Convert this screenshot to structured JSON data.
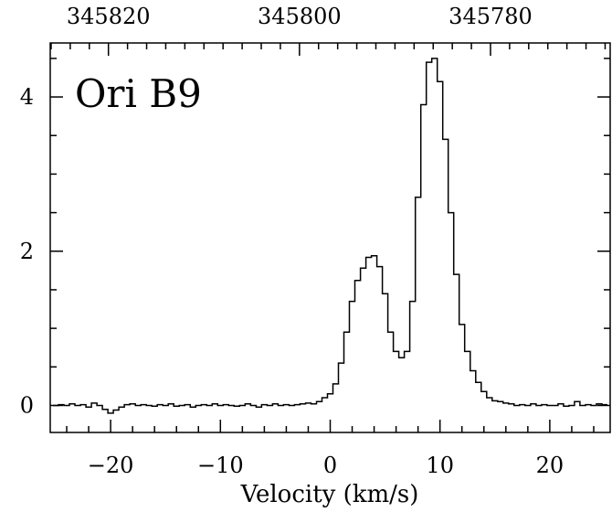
{
  "chart_data": {
    "type": "line",
    "step": true,
    "title": "",
    "annotation": "Ori B9",
    "xlabel": "Velocity (km/s)",
    "ylabel": "",
    "xlim": [
      -25.5,
      25.5
    ],
    "ylim": [
      -0.35,
      4.7
    ],
    "x_ticks": [
      -20,
      -10,
      0,
      10,
      20
    ],
    "x_tick_labels": [
      "−20",
      "−10",
      "0",
      "10",
      "20"
    ],
    "y_ticks": [
      0,
      2,
      4
    ],
    "y_tick_labels": [
      "0",
      "2",
      "4"
    ],
    "top_axis": {
      "ticks_at_velocity": [
        -20.2,
        -2.8,
        14.6
      ],
      "tick_labels": [
        "345820",
        "345800",
        "345780"
      ]
    },
    "grid": false,
    "legend": "none",
    "line_color": "#000000",
    "series": [
      {
        "x": [
          -25.0,
          -24.5,
          -24.0,
          -23.5,
          -23.0,
          -22.5,
          -22.0,
          -21.5,
          -21.0,
          -20.5,
          -20.0,
          -19.5,
          -19.0,
          -18.5,
          -18.0,
          -17.5,
          -17.0,
          -16.5,
          -16.0,
          -15.5,
          -15.0,
          -14.5,
          -14.0,
          -13.5,
          -13.0,
          -12.5,
          -12.0,
          -11.5,
          -11.0,
          -10.5,
          -10.0,
          -9.5,
          -9.0,
          -8.5,
          -8.0,
          -7.5,
          -7.0,
          -6.5,
          -6.0,
          -5.5,
          -5.0,
          -4.5,
          -4.0,
          -3.5,
          -3.0,
          -2.5,
          -2.0,
          -1.5,
          -1.0,
          -0.5,
          0.0,
          0.5,
          1.0,
          1.5,
          2.0,
          2.5,
          3.0,
          3.5,
          4.0,
          4.5,
          5.0,
          5.5,
          6.0,
          6.5,
          7.0,
          7.5,
          8.0,
          8.5,
          9.0,
          9.5,
          10.0,
          10.5,
          11.0,
          11.5,
          12.0,
          12.5,
          13.0,
          13.5,
          14.0,
          14.5,
          15.0,
          15.5,
          16.0,
          16.5,
          17.0,
          17.5,
          18.0,
          18.5,
          19.0,
          19.5,
          20.0,
          20.5,
          21.0,
          21.5,
          22.0,
          22.5,
          23.0,
          23.5,
          24.0,
          24.5,
          25.0
        ],
        "y": [
          0.0,
          0.01,
          0.0,
          0.02,
          0.0,
          0.01,
          -0.02,
          0.03,
          0.0,
          -0.05,
          -0.1,
          -0.06,
          -0.02,
          0.01,
          0.02,
          0.0,
          0.01,
          0.0,
          -0.01,
          0.01,
          0.0,
          0.02,
          -0.01,
          0.0,
          0.01,
          -0.02,
          0.0,
          0.01,
          0.0,
          0.02,
          0.0,
          0.01,
          0.0,
          -0.01,
          0.0,
          0.02,
          0.0,
          -0.02,
          0.01,
          0.0,
          0.02,
          0.0,
          0.01,
          0.0,
          0.01,
          0.02,
          0.03,
          0.02,
          0.05,
          0.1,
          0.15,
          0.28,
          0.55,
          0.95,
          1.35,
          1.62,
          1.78,
          1.92,
          1.94,
          1.8,
          1.45,
          0.95,
          0.7,
          0.62,
          0.7,
          1.35,
          2.7,
          3.9,
          4.45,
          4.5,
          4.2,
          3.45,
          2.5,
          1.7,
          1.05,
          0.7,
          0.45,
          0.3,
          0.18,
          0.1,
          0.06,
          0.05,
          0.03,
          0.02,
          0.0,
          0.01,
          0.0,
          0.02,
          0.0,
          0.01,
          0.0,
          0.0,
          0.02,
          -0.01,
          0.0,
          0.05,
          0.0,
          0.01,
          0.0,
          0.02,
          0.01
        ]
      }
    ]
  }
}
